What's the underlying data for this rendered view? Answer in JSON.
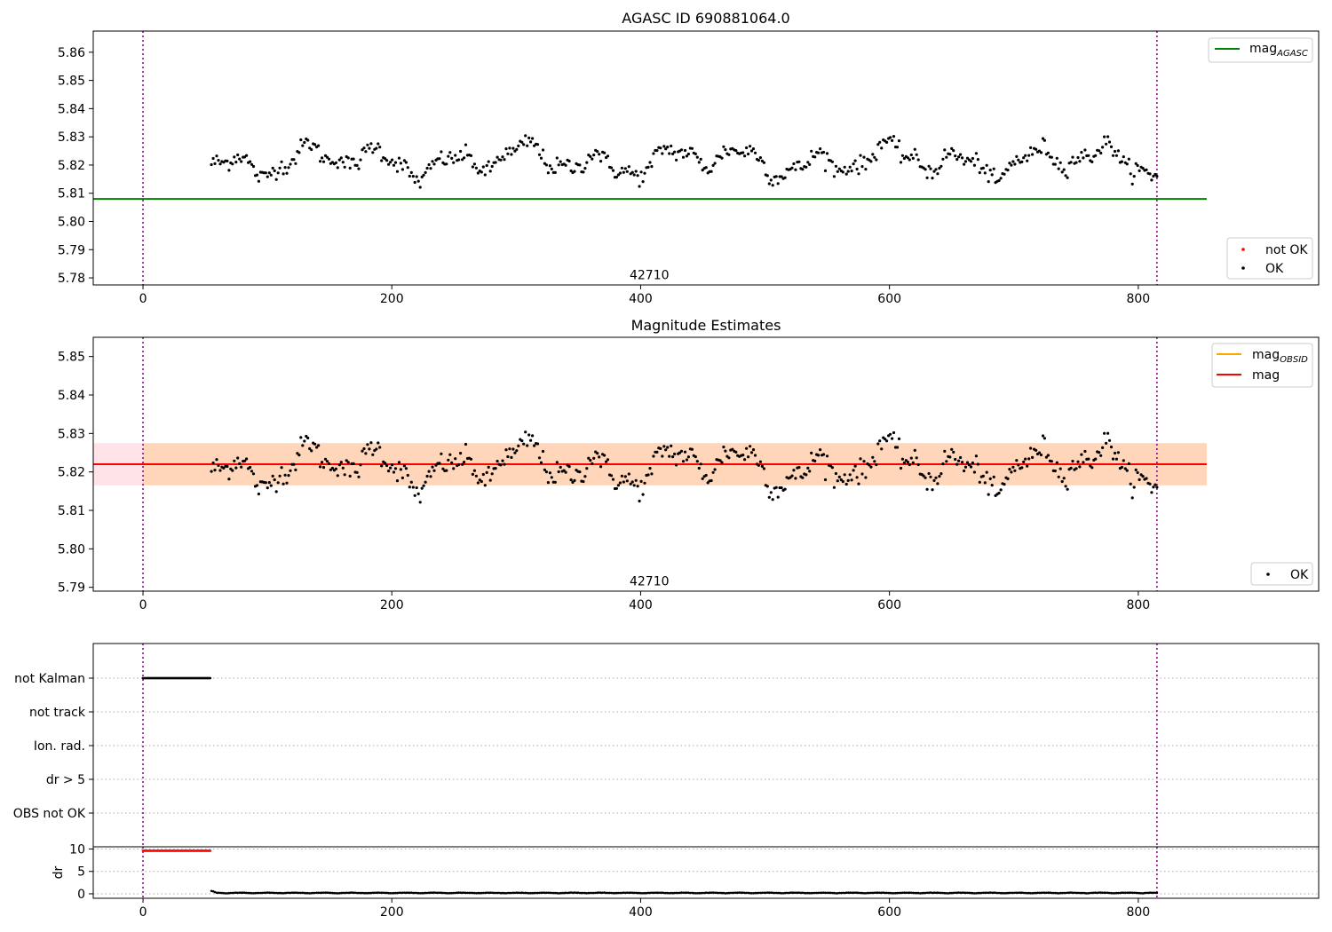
{
  "figure": {
    "background": "#ffffff"
  },
  "colors": {
    "ok": "#000000",
    "not_ok": "#ff0000",
    "mag_agasc": "#008000",
    "mag_obsid": "#ffa500",
    "mag": "#ff0000",
    "obs_boundary": "#800080",
    "band_fill": "#ffc0cb",
    "band_obsid_fill": "#ffa500"
  },
  "chart_data": [
    {
      "id": "panel1",
      "type": "scatter",
      "title": "AGASC ID 690881064.0",
      "xlim": [
        -40,
        945
      ],
      "ylim": [
        5.7775,
        5.8675
      ],
      "xticks": [
        0,
        200,
        400,
        600,
        800
      ],
      "xtick_labels": [
        "0",
        "200",
        "400",
        "600",
        "800"
      ],
      "yticks": [
        5.78,
        5.79,
        5.8,
        5.81,
        5.82,
        5.83,
        5.84,
        5.85,
        5.86
      ],
      "ytick_labels": [
        "5.78",
        "5.79",
        "5.80",
        "5.81",
        "5.82",
        "5.83",
        "5.84",
        "5.85",
        "5.86"
      ],
      "hlines": [
        {
          "series": "mag_agasc",
          "y": 5.808,
          "x_range": [
            -40,
            855
          ]
        }
      ],
      "vlines": [
        0,
        815
      ],
      "annotation": {
        "text": "42710",
        "x": 407,
        "y": 5.7795
      },
      "series": {
        "x_range": [
          55,
          815
        ],
        "count": 540,
        "base": 5.8215,
        "amplitude": 0.006,
        "noise": 0.0015
      },
      "legend_lines": [
        {
          "label_main": "mag",
          "label_sub": "AGASC",
          "color": "mag_agasc",
          "placement": "top-right"
        }
      ],
      "legend_points": [
        {
          "label": "not OK",
          "color": "not_ok",
          "placement": "bottom-right"
        },
        {
          "label": "OK",
          "color": "ok",
          "placement": "bottom-right"
        }
      ]
    },
    {
      "id": "panel2",
      "type": "scatter",
      "title": "Magnitude Estimates",
      "xlim": [
        -40,
        945
      ],
      "ylim": [
        5.789,
        5.855
      ],
      "xticks": [
        0,
        200,
        400,
        600,
        800
      ],
      "xtick_labels": [
        "0",
        "200",
        "400",
        "600",
        "800"
      ],
      "yticks": [
        5.79,
        5.8,
        5.81,
        5.82,
        5.83,
        5.84,
        5.85
      ],
      "ytick_labels": [
        "5.79",
        "5.80",
        "5.81",
        "5.82",
        "5.83",
        "5.84",
        "5.85"
      ],
      "hlines": [
        {
          "series": "mag",
          "y": 5.822,
          "x_range": [
            -40,
            855
          ]
        }
      ],
      "band": {
        "y_low": 5.8165,
        "y_high": 5.8275,
        "x_range": [
          -40,
          855
        ]
      },
      "band_obsid": {
        "y_low": 5.8165,
        "y_high": 5.8275,
        "x_range": [
          0,
          855
        ]
      },
      "vlines": [
        0,
        815
      ],
      "annotation": {
        "text": "42710",
        "x": 407,
        "y": 5.7905
      },
      "legend_lines": [
        {
          "label_main": "mag",
          "label_sub": "OBSID",
          "color": "mag_obsid",
          "placement": "top-right"
        },
        {
          "label_main": "mag",
          "label_sub": "",
          "color": "mag",
          "placement": "top-right"
        }
      ],
      "legend_points": [
        {
          "label": "OK",
          "color": "ok",
          "placement": "bottom-right"
        }
      ]
    },
    {
      "id": "panel3",
      "type": "scatter",
      "title": "",
      "xlim": [
        -40,
        945
      ],
      "categories": [
        "not Kalman",
        "not track",
        "Ion. rad.",
        "dr > 5",
        "OBS not OK"
      ],
      "flagged": {
        "category": "not Kalman",
        "x_range": [
          0,
          54
        ],
        "count": 55
      },
      "vlines": [
        0,
        815
      ]
    },
    {
      "id": "panel4",
      "type": "scatter",
      "title": "",
      "xlim": [
        -40,
        945
      ],
      "ylim": [
        -1,
        10.5
      ],
      "yticks": [
        0,
        5,
        10
      ],
      "ytick_labels": [
        "0",
        "5",
        "10"
      ],
      "ylabel": "dr",
      "xticks": [
        0,
        200,
        400,
        600,
        800
      ],
      "xtick_labels": [
        "0",
        "200",
        "400",
        "600",
        "800"
      ],
      "not_ok": {
        "x_range": [
          0,
          54
        ],
        "count": 55,
        "y": 9.6
      },
      "ok": {
        "x_range": [
          55,
          815
        ],
        "count": 540,
        "y": 0.1
      },
      "vlines": [
        0,
        815
      ]
    }
  ]
}
